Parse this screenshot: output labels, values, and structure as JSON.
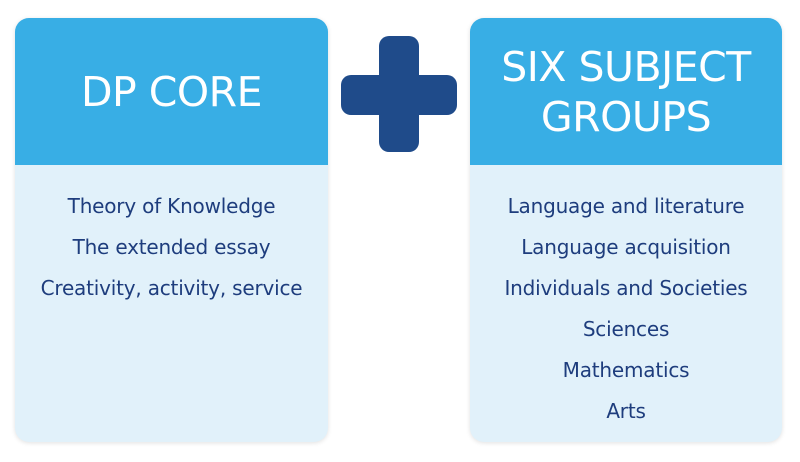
{
  "left_card": {
    "title": "DP CORE",
    "items": [
      "Theory of Knowledge",
      "The extended essay",
      "Creativity, activity, service"
    ]
  },
  "right_card": {
    "title_lines": [
      "SIX SUBJECT",
      "GROUPS"
    ],
    "items": [
      "Language and literature",
      "Language acquisition",
      "Individuals and Societies",
      "Sciences",
      "Mathematics",
      "Arts"
    ]
  },
  "icons": {
    "connector": "plus-icon"
  },
  "colors": {
    "header_bg": "#38aee5",
    "body_bg": "#e1f1fa",
    "item_text": "#1e3d7d",
    "plus": "#1f4b8a"
  }
}
